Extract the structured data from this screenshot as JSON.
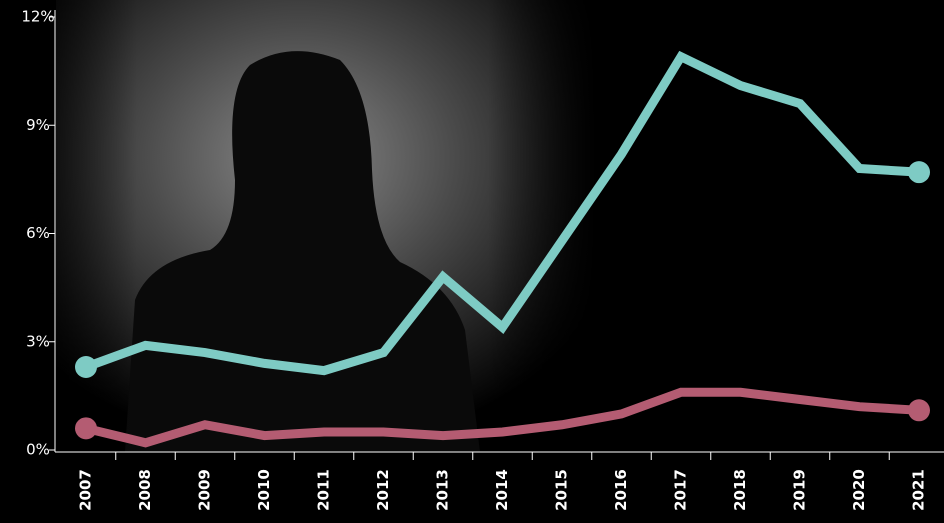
{
  "chart_data": {
    "type": "line",
    "categories": [
      "2007",
      "2008",
      "2009",
      "2010",
      "2011",
      "2012",
      "2013",
      "2014",
      "2015",
      "2016",
      "2017",
      "2018",
      "2019",
      "2020",
      "2021"
    ],
    "series": [
      {
        "color": "#7ecbc4",
        "values": [
          2.3,
          2.9,
          2.7,
          2.4,
          2.2,
          2.7,
          4.8,
          3.4,
          5.8,
          8.2,
          10.9,
          10.1,
          9.6,
          7.8,
          7.7
        ]
      },
      {
        "color": "#b45c72",
        "values": [
          0.6,
          0.2,
          0.7,
          0.4,
          0.5,
          0.5,
          0.4,
          0.5,
          0.7,
          1.0,
          1.6,
          1.6,
          1.4,
          1.2,
          1.1
        ]
      }
    ],
    "ylim": [
      0,
      12
    ],
    "yticks": [
      {
        "value": 0,
        "label": "0%"
      },
      {
        "value": 3,
        "label": "3%"
      },
      {
        "value": 6,
        "label": "6%"
      },
      {
        "value": 9,
        "label": "9%"
      },
      {
        "value": 12,
        "label": "12%"
      }
    ]
  }
}
